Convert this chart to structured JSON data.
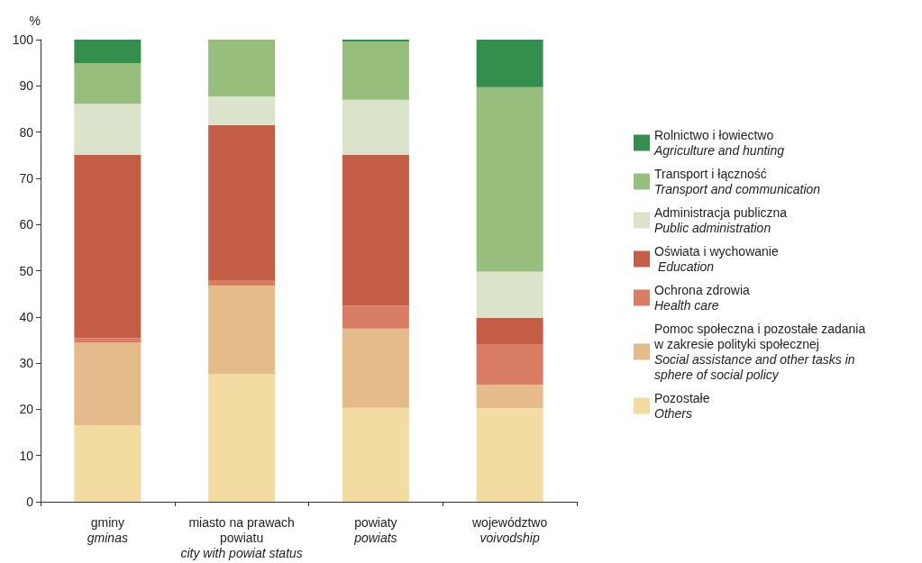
{
  "chart_data": {
    "type": "bar",
    "stacked": true,
    "ylabel": "%",
    "categories": [
      "gminy\ngminas",
      "miasto na prawach\npowiatu\ncity with powiat status",
      "powiaty\npowiats",
      "województwo\nvoivodship"
    ],
    "ylim": [
      0,
      100
    ],
    "yticks": [
      0,
      10,
      20,
      30,
      40,
      50,
      60,
      70,
      80,
      90,
      100
    ],
    "grid": false,
    "legend": "right",
    "series": [
      {
        "name": "Pozostałe\nOthers",
        "color": "#f2dca2",
        "values": [
          16.5,
          27.7,
          20.3,
          20.2
        ]
      },
      {
        "name": "Pomoc społeczna i pozostałe zadania\nw zakresie polityki społecznej\nSocial assistance and other tasks in\nsphere of social policy",
        "color": "#e6bb8c",
        "values": [
          17.9,
          19.1,
          17.2,
          5.1
        ]
      },
      {
        "name": "Ochrona zdrowia\nHealth care",
        "color": "#d97e65",
        "values": [
          1.0,
          1.0,
          4.9,
          8.8
        ]
      },
      {
        "name": "Oświata i wychowanie\n Education",
        "color": "#c45e47",
        "values": [
          39.7,
          33.7,
          32.7,
          5.7
        ]
      },
      {
        "name": "Administracja publiczna\nPublic administration",
        "color": "#dce3cb",
        "values": [
          11.0,
          6.2,
          11.9,
          10.0
        ]
      },
      {
        "name": "Transport i łączność\nTransport and communication",
        "color": "#97be7d",
        "values": [
          8.8,
          12.3,
          12.6,
          39.9
        ]
      },
      {
        "name": "Rolnictwo i łowiectwo\nAgriculture and hunting",
        "color": "#348e4d",
        "values": [
          5.1,
          0,
          0.4,
          10.3
        ]
      }
    ]
  }
}
